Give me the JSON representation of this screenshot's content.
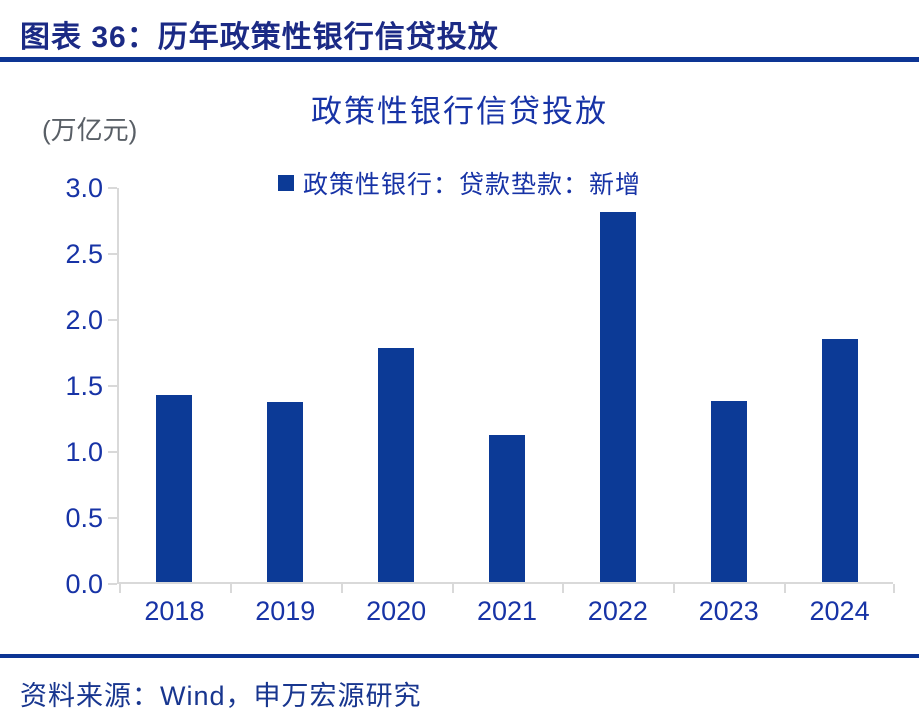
{
  "page": {
    "header_title": "图表 36：历年政策性银行信贷投放",
    "source_text": "资料来源：Wind，申万宏源研究"
  },
  "chart_data": {
    "type": "bar",
    "title": "政策性银行信贷投放",
    "unit_label": "(万亿元)",
    "legend": [
      "政策性银行：贷款垫款：新增"
    ],
    "legend_position": "top",
    "categories": [
      "2018",
      "2019",
      "2020",
      "2021",
      "2022",
      "2023",
      "2024"
    ],
    "values": [
      1.42,
      1.36,
      1.77,
      1.11,
      2.8,
      1.37,
      1.84
    ],
    "ylabel": "",
    "xlabel": "",
    "ylim": [
      0.0,
      3.0
    ],
    "yticks": [
      "0.0",
      "0.5",
      "1.0",
      "1.5",
      "2.0",
      "2.5",
      "3.0"
    ],
    "grid": false
  },
  "colors": {
    "bar": "#0c3a96",
    "accent_line": "#0d3594",
    "header_text": "#1b2a85",
    "chart_text": "#1733a6",
    "unit_text": "#595f66",
    "axis": "#d9d9d9",
    "source_text": "#18368f"
  }
}
